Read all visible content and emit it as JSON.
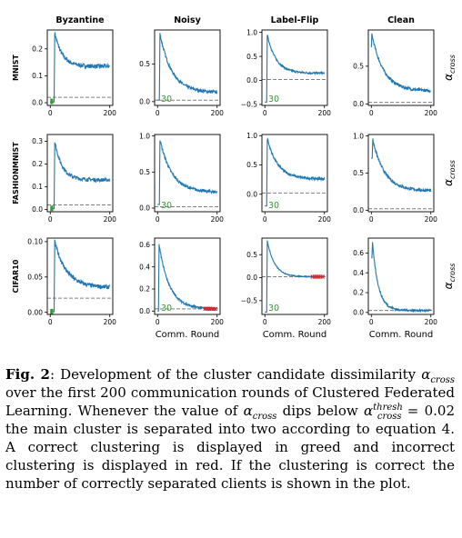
{
  "columns": [
    "Byzantine",
    "Noisy",
    "Label-Flip",
    "Clean"
  ],
  "rows": [
    "MNIST",
    "FASHIONMNIST",
    "CIFAR10"
  ],
  "right_label": "αcross",
  "xlabel": "Comm. Round",
  "colors": {
    "line": "#1f77b4",
    "threshold": "#7f7f7f",
    "correct": "#2ca02c",
    "incorrect": "#d62728"
  },
  "chart_data": [
    {
      "type": "line",
      "title": "Byzantine",
      "ylabel": "MNIST",
      "xlim": [
        -10,
        210
      ],
      "ylim": [
        -0.01,
        0.27
      ],
      "yticks": [
        "0.0",
        "0.1",
        "0.2"
      ],
      "ytick_values": [
        0,
        0.1,
        0.2
      ],
      "xticks": [
        "0",
        "200"
      ],
      "xtick_values": [
        0,
        200
      ],
      "threshold": 0.02,
      "start": 0.003,
      "peak": 0.26,
      "peak_round": 15,
      "tail": 0.135,
      "decay": 25,
      "noise": 0.008,
      "marker": {
        "kind": "correct",
        "from": 0,
        "to": 10,
        "y": 0.005
      },
      "annotation": ""
    },
    {
      "type": "line",
      "title": "Noisy",
      "xlim": [
        -10,
        210
      ],
      "ylim": [
        -0.05,
        0.95
      ],
      "yticks": [
        "0.0",
        "0.5"
      ],
      "ytick_values": [
        0,
        0.5
      ],
      "xticks": [
        "0",
        "200"
      ],
      "xtick_values": [
        0,
        200
      ],
      "threshold": 0.02,
      "start": 0.02,
      "peak": 0.9,
      "peak_round": 8,
      "tail": 0.12,
      "decay": 40,
      "noise": 0.02,
      "marker": null,
      "annotation": "30"
    },
    {
      "type": "line",
      "title": "Label-Flip",
      "xlim": [
        -10,
        210
      ],
      "ylim": [
        -0.52,
        1.05
      ],
      "yticks": [
        "−0.5",
        "0.0",
        "0.5",
        "1.0"
      ],
      "ytick_values": [
        -0.5,
        0,
        0.5,
        1
      ],
      "xticks": [
        "0",
        "200"
      ],
      "xtick_values": [
        0,
        200
      ],
      "threshold": 0.02,
      "start": -0.45,
      "peak": 0.95,
      "peak_round": 8,
      "tail": 0.15,
      "decay": 30,
      "noise": 0.02,
      "marker": null,
      "annotation": "30"
    },
    {
      "type": "line",
      "title": "Clean",
      "xlim": [
        -10,
        210
      ],
      "ylim": [
        -0.02,
        0.98
      ],
      "yticks": [
        "0.0",
        "0.5"
      ],
      "ytick_values": [
        0,
        0.5
      ],
      "xticks": [
        "0",
        "200"
      ],
      "xtick_values": [
        0,
        200
      ],
      "threshold": 0.02,
      "start": 0.75,
      "peak": 0.92,
      "peak_round": 2,
      "tail": 0.17,
      "decay": 40,
      "noise": 0.02,
      "marker": null,
      "annotation": ""
    },
    {
      "type": "line",
      "title": "",
      "ylabel": "FASHIONMNIST",
      "xlim": [
        -10,
        210
      ],
      "ylim": [
        -0.01,
        0.33
      ],
      "yticks": [
        "0.0",
        "0.1",
        "0.2",
        "0.3"
      ],
      "ytick_values": [
        0,
        0.1,
        0.2,
        0.3
      ],
      "xticks": [
        "0",
        "200"
      ],
      "xtick_values": [
        0,
        200
      ],
      "threshold": 0.02,
      "start": 0.003,
      "peak": 0.3,
      "peak_round": 15,
      "tail": 0.13,
      "decay": 25,
      "noise": 0.008,
      "marker": {
        "kind": "correct",
        "from": 0,
        "to": 10,
        "y": 0.005
      },
      "annotation": ""
    },
    {
      "type": "line",
      "title": "",
      "xlim": [
        -10,
        210
      ],
      "ylim": [
        -0.05,
        1.02
      ],
      "yticks": [
        "0.0",
        "0.5",
        "1.0"
      ],
      "ytick_values": [
        0,
        0.5,
        1
      ],
      "xticks": [
        "0",
        "200"
      ],
      "xtick_values": [
        0,
        200
      ],
      "threshold": 0.02,
      "start": 0.05,
      "peak": 0.95,
      "peak_round": 8,
      "tail": 0.22,
      "decay": 40,
      "noise": 0.02,
      "marker": null,
      "annotation": "30"
    },
    {
      "type": "line",
      "title": "",
      "xlim": [
        -10,
        210
      ],
      "ylim": [
        -0.3,
        1.02
      ],
      "yticks": [
        "0.0",
        "0.5",
        "1.0"
      ],
      "ytick_values": [
        0,
        0.5,
        1
      ],
      "xticks": [
        "0",
        "200"
      ],
      "xtick_values": [
        0,
        200
      ],
      "threshold": 0.02,
      "start": -0.2,
      "peak": 0.95,
      "peak_round": 8,
      "tail": 0.26,
      "decay": 35,
      "noise": 0.02,
      "marker": null,
      "annotation": "30"
    },
    {
      "type": "line",
      "title": "",
      "xlim": [
        -10,
        210
      ],
      "ylim": [
        -0.02,
        1.02
      ],
      "yticks": [
        "0.0",
        "0.5",
        "1.0"
      ],
      "ytick_values": [
        0,
        0.5,
        1
      ],
      "xticks": [
        "0",
        "200"
      ],
      "xtick_values": [
        0,
        200
      ],
      "threshold": 0.02,
      "start": 0.7,
      "peak": 0.95,
      "peak_round": 5,
      "tail": 0.26,
      "decay": 40,
      "noise": 0.02,
      "marker": null,
      "annotation": ""
    },
    {
      "type": "line",
      "title": "",
      "ylabel": "CIFAR10",
      "xlim": [
        -10,
        210
      ],
      "ylim": [
        -0.003,
        0.105
      ],
      "yticks": [
        "0.00",
        "0.05",
        "0.10"
      ],
      "ytick_values": [
        0,
        0.05,
        0.1
      ],
      "xticks": [
        "0",
        "200"
      ],
      "xtick_values": [
        0,
        200
      ],
      "threshold": 0.02,
      "start": 0.001,
      "peak": 0.1,
      "peak_round": 15,
      "tail": 0.035,
      "decay": 40,
      "noise": 0.003,
      "marker": {
        "kind": "correct",
        "from": 0,
        "to": 10,
        "y": 0.001
      },
      "annotation": ""
    },
    {
      "type": "line",
      "title": "",
      "xlim": [
        -10,
        210
      ],
      "ylim": [
        -0.03,
        0.66
      ],
      "yticks": [
        "0.0",
        "0.2",
        "0.4",
        "0.6"
      ],
      "ytick_values": [
        0,
        0.2,
        0.4,
        0.6
      ],
      "xticks": [
        "0",
        "200"
      ],
      "xtick_values": [
        0,
        200
      ],
      "xlabel": "Comm. Round",
      "threshold": 0.02,
      "start": 0.0,
      "peak": 0.6,
      "peak_round": 5,
      "tail": 0.02,
      "decay": 35,
      "noise": 0.01,
      "marker": {
        "kind": "incorrect",
        "from": 160,
        "to": 200,
        "y": 0.02
      },
      "annotation": "30"
    },
    {
      "type": "line",
      "title": "",
      "xlim": [
        -10,
        210
      ],
      "ylim": [
        -0.8,
        0.86
      ],
      "yticks": [
        "−0.5",
        "0.0",
        "0.5"
      ],
      "ytick_values": [
        -0.5,
        0,
        0.5
      ],
      "xticks": [
        "0",
        "200"
      ],
      "xtick_values": [
        0,
        200
      ],
      "xlabel": "Comm. Round",
      "threshold": 0.02,
      "start": -0.75,
      "peak": 0.8,
      "peak_round": 8,
      "tail": 0.02,
      "decay": 25,
      "noise": 0.01,
      "marker": {
        "kind": "incorrect",
        "from": 160,
        "to": 200,
        "y": 0.02
      },
      "annotation": "30"
    },
    {
      "type": "line",
      "title": "",
      "xlim": [
        -10,
        210
      ],
      "ylim": [
        -0.02,
        0.75
      ],
      "yticks": [
        "0.0",
        "0.2",
        "0.4",
        "0.6"
      ],
      "ytick_values": [
        0,
        0.2,
        0.4,
        0.6
      ],
      "xticks": [
        "0",
        "200"
      ],
      "xtick_values": [
        0,
        200
      ],
      "xlabel": "Comm. Round",
      "threshold": 0.02,
      "start": 0.55,
      "peak": 0.7,
      "peak_round": 4,
      "tail": 0.02,
      "decay": 20,
      "noise": 0.01,
      "marker": null,
      "annotation": ""
    }
  ],
  "caption": {
    "label": "Fig. 2",
    "sep": ":",
    "t1": " Development of the cluster candidate dissimilarity ",
    "m1_base": "α",
    "m1_sub": "cross",
    "t2": " over the first 200 communication rounds of Clustered Federated Learning. Whenever the value of ",
    "m2_base": "α",
    "m2_sub": "cross",
    "t3": " dips below ",
    "m3_base": "α",
    "m3_sup": "thresh",
    "m3_sub": "cross",
    "m3_rest": " = 0.02",
    "t4": " the main cluster is separated into two according to equation 4.  A correct clustering is displayed in greed and incorrect clustering is displayed in red. If the clustering is correct the number of correctly separated clients is shown in the plot."
  }
}
